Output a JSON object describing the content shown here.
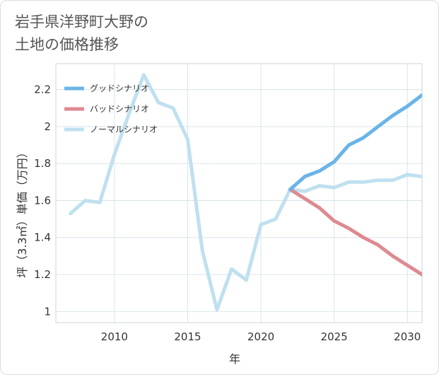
{
  "title": "岩手県洋野町大野の\n土地の価格推移",
  "chart_data": {
    "type": "line",
    "title": "岩手県洋野町大野の土地の価格推移",
    "xlabel": "年",
    "ylabel": "坪（3.3㎡）単価（万円）",
    "xlim": [
      2006,
      2031
    ],
    "ylim": [
      0.94,
      2.34
    ],
    "xticks": [
      2010,
      2015,
      2020,
      2025,
      2030
    ],
    "yticks": [
      1,
      1.2,
      1.4,
      1.6,
      1.8,
      2,
      2.2
    ],
    "ytick_labels": [
      "1",
      "1.2",
      "1.4",
      "1.6",
      "1.8",
      "2",
      "2.2"
    ],
    "grid": true,
    "legend_position": "top-left",
    "series": [
      {
        "name": "グッドシナリオ",
        "color": "#6ab4e8",
        "x": [
          2022,
          2023,
          2024,
          2025,
          2026,
          2027,
          2028,
          2029,
          2030,
          2031
        ],
        "y": [
          1.66,
          1.73,
          1.76,
          1.81,
          1.9,
          1.94,
          2.0,
          2.06,
          2.11,
          2.17
        ]
      },
      {
        "name": "バッドシナリオ",
        "color": "#dd8a91",
        "x": [
          2022,
          2023,
          2024,
          2025,
          2026,
          2027,
          2028,
          2029,
          2030,
          2031
        ],
        "y": [
          1.66,
          1.61,
          1.56,
          1.49,
          1.45,
          1.4,
          1.36,
          1.3,
          1.25,
          1.2
        ]
      },
      {
        "name": "ノーマルシナリオ",
        "color": "#bfe0ef",
        "x": [
          2007,
          2008,
          2009,
          2010,
          2011,
          2012,
          2013,
          2014,
          2015,
          2016,
          2017,
          2018,
          2019,
          2020,
          2021,
          2022,
          2023,
          2024,
          2025,
          2026,
          2027,
          2028,
          2029,
          2030,
          2031
        ],
        "y": [
          1.53,
          1.6,
          1.59,
          1.85,
          2.07,
          2.28,
          2.13,
          2.1,
          1.93,
          1.33,
          1.01,
          1.23,
          1.17,
          1.47,
          1.5,
          1.66,
          1.65,
          1.68,
          1.67,
          1.7,
          1.7,
          1.71,
          1.71,
          1.74,
          1.73
        ]
      }
    ]
  }
}
